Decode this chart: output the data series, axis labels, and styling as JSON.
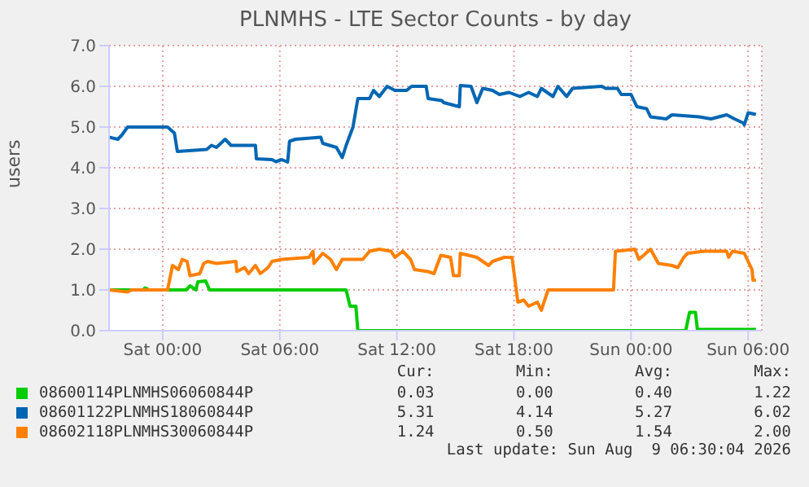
{
  "chart_data": {
    "type": "line",
    "title": "PLNMHS - LTE Sector Counts - by day",
    "ylabel": "users",
    "xlim": [
      "2026-08-07T21:15",
      "2026-08-09T06:42"
    ],
    "xticks": [
      {
        "value": "2026-08-08T00:00",
        "label": "Sat 00:00"
      },
      {
        "value": "2026-08-08T06:00",
        "label": "Sat 06:00"
      },
      {
        "value": "2026-08-08T12:00",
        "label": "Sat 12:00"
      },
      {
        "value": "2026-08-08T18:00",
        "label": "Sat 18:00"
      },
      {
        "value": "2026-08-09T00:00",
        "label": "Sun 00:00"
      },
      {
        "value": "2026-08-09T06:00",
        "label": "Sun 06:00"
      }
    ],
    "ylim": [
      0,
      7
    ],
    "yticks": [
      {
        "value": 0,
        "label": "0.0"
      },
      {
        "value": 1,
        "label": "1.0"
      },
      {
        "value": 2,
        "label": "2.0"
      },
      {
        "value": 3,
        "label": "3.0"
      },
      {
        "value": 4,
        "label": "4.0"
      },
      {
        "value": 5,
        "label": "5.0"
      },
      {
        "value": 6,
        "label": "6.0"
      },
      {
        "value": 7,
        "label": "7.0"
      }
    ],
    "grid": true,
    "legend": "bottom",
    "marker": "none",
    "line_style": "solid",
    "series": [
      {
        "name": "08600114PLNMHS06060844P",
        "color": "#00cc00",
        "x": [
          "2026-08-07T21:15",
          "2026-08-07T23:00",
          "2026-08-07T23:06",
          "2026-08-07T23:18",
          "2026-08-08T01:12",
          "2026-08-08T01:24",
          "2026-08-08T01:42",
          "2026-08-08T01:48",
          "2026-08-08T02:12",
          "2026-08-08T02:24",
          "2026-08-08T09:24",
          "2026-08-08T09:36",
          "2026-08-08T09:54",
          "2026-08-08T10:00",
          "2026-08-09T02:48",
          "2026-08-09T03:00",
          "2026-08-09T03:18",
          "2026-08-09T03:24",
          "2026-08-09T06:24"
        ],
        "values": [
          1.0,
          1.0,
          1.05,
          1.0,
          1.0,
          1.1,
          1.0,
          1.2,
          1.22,
          1.0,
          1.0,
          0.6,
          0.6,
          0.0,
          0.0,
          0.45,
          0.45,
          0.03,
          0.03
        ]
      },
      {
        "name": "08601122PLNMHS18060844P",
        "color": "#0066b3",
        "x": [
          "2026-08-07T21:15",
          "2026-08-07T21:42",
          "2026-08-07T21:54",
          "2026-08-07T22:12",
          "2026-08-08T00:15",
          "2026-08-08T00:36",
          "2026-08-08T00:45",
          "2026-08-08T02:15",
          "2026-08-08T02:30",
          "2026-08-08T02:45",
          "2026-08-08T03:12",
          "2026-08-08T03:30",
          "2026-08-08T04:45",
          "2026-08-08T04:48",
          "2026-08-08T05:36",
          "2026-08-08T05:48",
          "2026-08-08T06:06",
          "2026-08-08T06:24",
          "2026-08-08T06:30",
          "2026-08-08T06:48",
          "2026-08-08T08:06",
          "2026-08-08T08:12",
          "2026-08-08T08:54",
          "2026-08-08T09:12",
          "2026-08-08T09:24",
          "2026-08-08T09:45",
          "2026-08-08T10:00",
          "2026-08-08T10:36",
          "2026-08-08T10:48",
          "2026-08-08T11:06",
          "2026-08-08T11:30",
          "2026-08-08T11:54",
          "2026-08-08T12:30",
          "2026-08-08T12:45",
          "2026-08-08T13:30",
          "2026-08-08T13:36",
          "2026-08-08T14:18",
          "2026-08-08T14:24",
          "2026-08-08T15:12",
          "2026-08-08T15:15",
          "2026-08-08T15:48",
          "2026-08-08T16:06",
          "2026-08-08T16:24",
          "2026-08-08T16:54",
          "2026-08-08T17:15",
          "2026-08-08T17:45",
          "2026-08-08T18:18",
          "2026-08-08T18:45",
          "2026-08-08T19:12",
          "2026-08-08T19:24",
          "2026-08-08T20:00",
          "2026-08-08T20:15",
          "2026-08-08T20:42",
          "2026-08-08T21:00",
          "2026-08-08T22:30",
          "2026-08-08T22:42",
          "2026-08-08T23:18",
          "2026-08-08T23:30",
          "2026-08-09T00:00",
          "2026-08-09T00:18",
          "2026-08-09T00:48",
          "2026-08-09T01:00",
          "2026-08-09T01:48",
          "2026-08-09T02:06",
          "2026-08-09T03:30",
          "2026-08-09T04:06",
          "2026-08-09T04:54",
          "2026-08-09T05:18",
          "2026-08-09T05:45",
          "2026-08-09T05:48",
          "2026-08-09T06:00",
          "2026-08-09T06:24"
        ],
        "values": [
          4.75,
          4.7,
          4.8,
          5.0,
          5.0,
          4.85,
          4.4,
          4.45,
          4.55,
          4.5,
          4.7,
          4.55,
          4.55,
          4.22,
          4.2,
          4.15,
          4.2,
          4.14,
          4.65,
          4.7,
          4.75,
          4.6,
          4.5,
          4.25,
          4.55,
          5.0,
          5.7,
          5.7,
          5.9,
          5.75,
          6.0,
          5.9,
          5.9,
          6.0,
          6.0,
          5.7,
          5.65,
          5.6,
          5.5,
          6.02,
          6.0,
          5.6,
          5.95,
          5.9,
          5.8,
          5.85,
          5.75,
          5.85,
          5.75,
          5.95,
          5.75,
          6.0,
          5.75,
          5.95,
          6.0,
          5.95,
          5.95,
          5.8,
          5.8,
          5.5,
          5.45,
          5.25,
          5.2,
          5.3,
          5.25,
          5.2,
          5.3,
          5.2,
          5.1,
          5.05,
          5.35,
          5.31
        ]
      },
      {
        "name": "08602118PLNMHS30060844P",
        "color": "#ff8000",
        "x": [
          "2026-08-07T21:15",
          "2026-08-07T22:12",
          "2026-08-07T22:24",
          "2026-08-08T00:15",
          "2026-08-08T00:30",
          "2026-08-08T00:48",
          "2026-08-08T01:00",
          "2026-08-08T01:15",
          "2026-08-08T01:24",
          "2026-08-08T01:54",
          "2026-08-08T02:06",
          "2026-08-08T02:18",
          "2026-08-08T02:45",
          "2026-08-08T03:45",
          "2026-08-08T03:48",
          "2026-08-08T04:12",
          "2026-08-08T04:24",
          "2026-08-08T04:45",
          "2026-08-08T05:00",
          "2026-08-08T05:24",
          "2026-08-08T05:36",
          "2026-08-08T06:06",
          "2026-08-08T07:30",
          "2026-08-08T07:42",
          "2026-08-08T07:45",
          "2026-08-08T08:12",
          "2026-08-08T08:36",
          "2026-08-08T08:54",
          "2026-08-08T09:12",
          "2026-08-08T10:15",
          "2026-08-08T10:36",
          "2026-08-08T11:06",
          "2026-08-08T11:42",
          "2026-08-08T11:54",
          "2026-08-08T12:18",
          "2026-08-08T12:42",
          "2026-08-08T12:54",
          "2026-08-08T13:36",
          "2026-08-08T13:54",
          "2026-08-08T14:15",
          "2026-08-08T14:45",
          "2026-08-08T14:54",
          "2026-08-08T15:12",
          "2026-08-08T15:15",
          "2026-08-08T16:06",
          "2026-08-08T16:42",
          "2026-08-08T16:54",
          "2026-08-08T17:30",
          "2026-08-08T17:54",
          "2026-08-08T18:12",
          "2026-08-08T18:30",
          "2026-08-08T18:45",
          "2026-08-08T19:12",
          "2026-08-08T19:24",
          "2026-08-08T19:45",
          "2026-08-08T22:15",
          "2026-08-08T23:06",
          "2026-08-08T23:12",
          "2026-08-09T00:12",
          "2026-08-09T00:24",
          "2026-08-09T01:00",
          "2026-08-09T01:24",
          "2026-08-09T02:06",
          "2026-08-09T02:24",
          "2026-08-09T02:42",
          "2026-08-09T02:54",
          "2026-08-09T03:45",
          "2026-08-09T04:54",
          "2026-08-09T05:00",
          "2026-08-09T05:12",
          "2026-08-09T05:48",
          "2026-08-09T06:12",
          "2026-08-09T06:15",
          "2026-08-09T06:24"
        ],
        "values": [
          1.0,
          0.95,
          1.0,
          1.0,
          1.6,
          1.5,
          1.75,
          1.7,
          1.35,
          1.4,
          1.65,
          1.7,
          1.65,
          1.7,
          1.45,
          1.55,
          1.4,
          1.6,
          1.4,
          1.55,
          1.7,
          1.75,
          1.8,
          1.95,
          1.65,
          1.9,
          1.75,
          1.5,
          1.75,
          1.75,
          1.95,
          2.0,
          1.95,
          1.8,
          1.95,
          1.75,
          1.5,
          1.45,
          1.4,
          1.85,
          1.8,
          1.35,
          1.35,
          1.9,
          1.8,
          1.6,
          1.7,
          1.8,
          1.8,
          0.7,
          0.75,
          0.6,
          0.7,
          0.5,
          1.0,
          1.0,
          1.0,
          1.95,
          2.0,
          1.75,
          2.0,
          1.65,
          1.6,
          1.55,
          1.8,
          1.9,
          1.95,
          1.95,
          1.8,
          1.95,
          1.9,
          1.5,
          1.24,
          1.24
        ]
      }
    ],
    "annotations": [
      "Cur:",
      "Min:",
      "Avg:",
      "Max:",
      "0.03",
      "0.00",
      "0.40",
      "1.22",
      "5.31",
      "4.14",
      "5.27",
      "6.02",
      "1.24",
      "0.50",
      "1.54",
      "2.00",
      "Last update: Sun Aug  9 06:30:04 2026"
    ]
  }
}
